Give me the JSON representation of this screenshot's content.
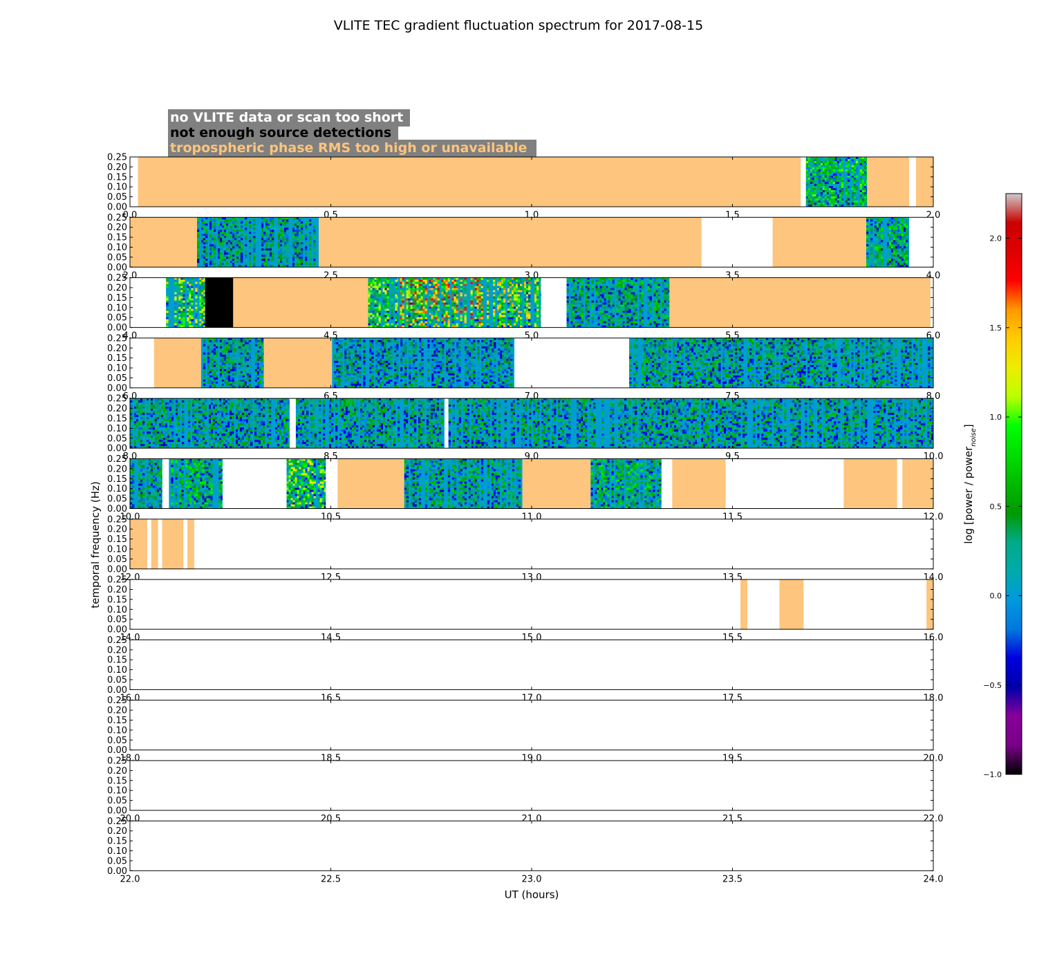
{
  "colors": {
    "tropo": "#fdc57d",
    "none": "#ffffff",
    "nodetect": "#000000",
    "legend_bg": "#808080",
    "legend_white": "#ffffff",
    "legend_black": "#000000",
    "legend_tropo": "#fdc57d"
  },
  "chart_data": {
    "type": "heatmap",
    "title": "VLITE TEC gradient fluctuation spectrum for 2017-08-15",
    "xlabel": "UT (hours)",
    "ylabel": "temporal frequency (Hz)",
    "yticks": [
      "0.00",
      "0.05",
      "0.10",
      "0.15",
      "0.20",
      "0.25"
    ],
    "ylim": [
      0,
      0.25
    ],
    "hours_per_panel": 2,
    "legend": [
      {
        "label": "no VLITE data or scan too short",
        "color_key": "legend_white"
      },
      {
        "label": "not enough source detections",
        "color_key": "legend_black"
      },
      {
        "label": "tropospheric phase RMS too high or unavailable",
        "color_key": "legend_tropo"
      }
    ],
    "colorbar": {
      "label_prefix": "log [power / power",
      "label_sub": "noise",
      "label_suffix": "]",
      "min": -1.0,
      "max": 2.25,
      "ticks": [
        "2.0",
        "1.5",
        "1.0",
        "0.5",
        "0.0",
        "−0.5",
        "−1.0"
      ],
      "tick_values": [
        2.0,
        1.5,
        1.0,
        0.5,
        0.0,
        -0.5,
        -1.0
      ]
    },
    "panels": [
      {
        "start": 0,
        "end": 2,
        "xticks": [
          "0.0",
          "0.5",
          "1.0",
          "1.5",
          "2.0"
        ],
        "segments": [
          {
            "from": 0.02,
            "to": 1.67,
            "kind": "tropo"
          },
          {
            "from": 1.683,
            "to": 1.835,
            "kind": "spectrum",
            "level": 0.25
          },
          {
            "from": 1.835,
            "to": 1.94,
            "kind": "tropo"
          },
          {
            "from": 1.957,
            "to": 2.0,
            "kind": "tropo"
          }
        ]
      },
      {
        "start": 2,
        "end": 4,
        "xticks": [
          "2.0",
          "2.5",
          "3.0",
          "3.5",
          "4.0"
        ],
        "segments": [
          {
            "from": 2.0,
            "to": 2.167,
            "kind": "tropo"
          },
          {
            "from": 2.167,
            "to": 2.47,
            "kind": "spectrum",
            "level": 0.12
          },
          {
            "from": 2.47,
            "to": 3.423,
            "kind": "tropo"
          },
          {
            "from": 3.6,
            "to": 3.833,
            "kind": "tropo"
          },
          {
            "from": 3.833,
            "to": 3.94,
            "kind": "spectrum",
            "level": 0.2
          }
        ]
      },
      {
        "start": 4,
        "end": 6,
        "xticks": [
          "4.0",
          "4.5",
          "5.0",
          "5.5",
          "6.0"
        ],
        "segments": [
          {
            "from": 4.09,
            "to": 4.187,
            "kind": "spectrum",
            "level": 0.4
          },
          {
            "from": 4.187,
            "to": 4.257,
            "kind": "nodetect"
          },
          {
            "from": 4.257,
            "to": 4.593,
            "kind": "tropo"
          },
          {
            "from": 4.593,
            "to": 4.667,
            "kind": "spectrum",
            "level": 0.35
          },
          {
            "from": 4.667,
            "to": 4.883,
            "kind": "spectrum",
            "level": 0.6
          },
          {
            "from": 4.883,
            "to": 5.023,
            "kind": "spectrum",
            "level": 0.5
          },
          {
            "from": 5.087,
            "to": 5.343,
            "kind": "spectrum",
            "level": 0.15
          },
          {
            "from": 5.343,
            "to": 5.993,
            "kind": "tropo"
          }
        ]
      },
      {
        "start": 6,
        "end": 8,
        "xticks": [
          "6.0",
          "6.5",
          "7.0",
          "7.5",
          "8.0"
        ],
        "segments": [
          {
            "from": 6.06,
            "to": 6.177,
            "kind": "tropo"
          },
          {
            "from": 6.177,
            "to": 6.333,
            "kind": "spectrum",
            "level": 0.1
          },
          {
            "from": 6.333,
            "to": 6.503,
            "kind": "tropo"
          },
          {
            "from": 6.503,
            "to": 6.957,
            "kind": "spectrum",
            "level": 0.05
          },
          {
            "from": 7.243,
            "to": 8.0,
            "kind": "spectrum",
            "level": 0.1
          }
        ]
      },
      {
        "start": 8,
        "end": 10,
        "xticks": [
          "8.0",
          "8.5",
          "9.0",
          "9.5",
          "10.0"
        ],
        "segments": [
          {
            "from": 8.0,
            "to": 8.397,
            "kind": "spectrum",
            "level": 0.1
          },
          {
            "from": 8.413,
            "to": 8.783,
            "kind": "spectrum",
            "level": 0.1
          },
          {
            "from": 8.793,
            "to": 8.983,
            "kind": "spectrum",
            "level": 0.1
          },
          {
            "from": 8.983,
            "to": 10.0,
            "kind": "spectrum",
            "level": 0.1
          }
        ]
      },
      {
        "start": 10,
        "end": 12,
        "xticks": [
          "10.0",
          "10.5",
          "11.0",
          "11.5",
          "12.0"
        ],
        "segments": [
          {
            "from": 10.0,
            "to": 10.08,
            "kind": "spectrum",
            "level": 0.1
          },
          {
            "from": 10.097,
            "to": 10.23,
            "kind": "spectrum",
            "level": 0.2
          },
          {
            "from": 10.39,
            "to": 10.487,
            "kind": "spectrum",
            "level": 0.35
          },
          {
            "from": 10.517,
            "to": 10.683,
            "kind": "tropo"
          },
          {
            "from": 10.683,
            "to": 10.977,
            "kind": "spectrum",
            "level": 0.12
          },
          {
            "from": 10.977,
            "to": 11.147,
            "kind": "tropo"
          },
          {
            "from": 11.147,
            "to": 11.323,
            "kind": "spectrum",
            "level": 0.2
          },
          {
            "from": 11.35,
            "to": 11.483,
            "kind": "tropo"
          },
          {
            "from": 11.777,
            "to": 11.91,
            "kind": "tropo"
          },
          {
            "from": 11.923,
            "to": 12.0,
            "kind": "tropo"
          }
        ]
      },
      {
        "start": 12,
        "end": 14,
        "xticks": [
          "12.0",
          "12.5",
          "13.0",
          "13.5",
          "14.0"
        ],
        "segments": [
          {
            "from": 12.0,
            "to": 12.043,
            "kind": "tropo"
          },
          {
            "from": 12.053,
            "to": 12.07,
            "kind": "tropo"
          },
          {
            "from": 12.08,
            "to": 12.133,
            "kind": "tropo"
          },
          {
            "from": 12.143,
            "to": 12.16,
            "kind": "tropo"
          }
        ]
      },
      {
        "start": 14,
        "end": 16,
        "xticks": [
          "14.0",
          "14.5",
          "15.0",
          "15.5",
          "16.0"
        ],
        "segments": [
          {
            "from": 15.52,
            "to": 15.537,
            "kind": "tropo"
          },
          {
            "from": 15.617,
            "to": 15.677,
            "kind": "tropo"
          },
          {
            "from": 15.983,
            "to": 16.0,
            "kind": "tropo"
          }
        ]
      },
      {
        "start": 16,
        "end": 18,
        "xticks": [
          "16.0",
          "16.5",
          "17.0",
          "17.5",
          "18.0"
        ],
        "segments": []
      },
      {
        "start": 18,
        "end": 20,
        "xticks": [
          "18.0",
          "18.5",
          "19.0",
          "19.5",
          "20.0"
        ],
        "segments": []
      },
      {
        "start": 20,
        "end": 22,
        "xticks": [
          "20.0",
          "20.5",
          "21.0",
          "21.5",
          "22.0"
        ],
        "segments": []
      },
      {
        "start": 22,
        "end": 24,
        "xticks": [
          "22.0",
          "22.5",
          "23.0",
          "23.5",
          "24.0"
        ],
        "segments": []
      }
    ]
  }
}
